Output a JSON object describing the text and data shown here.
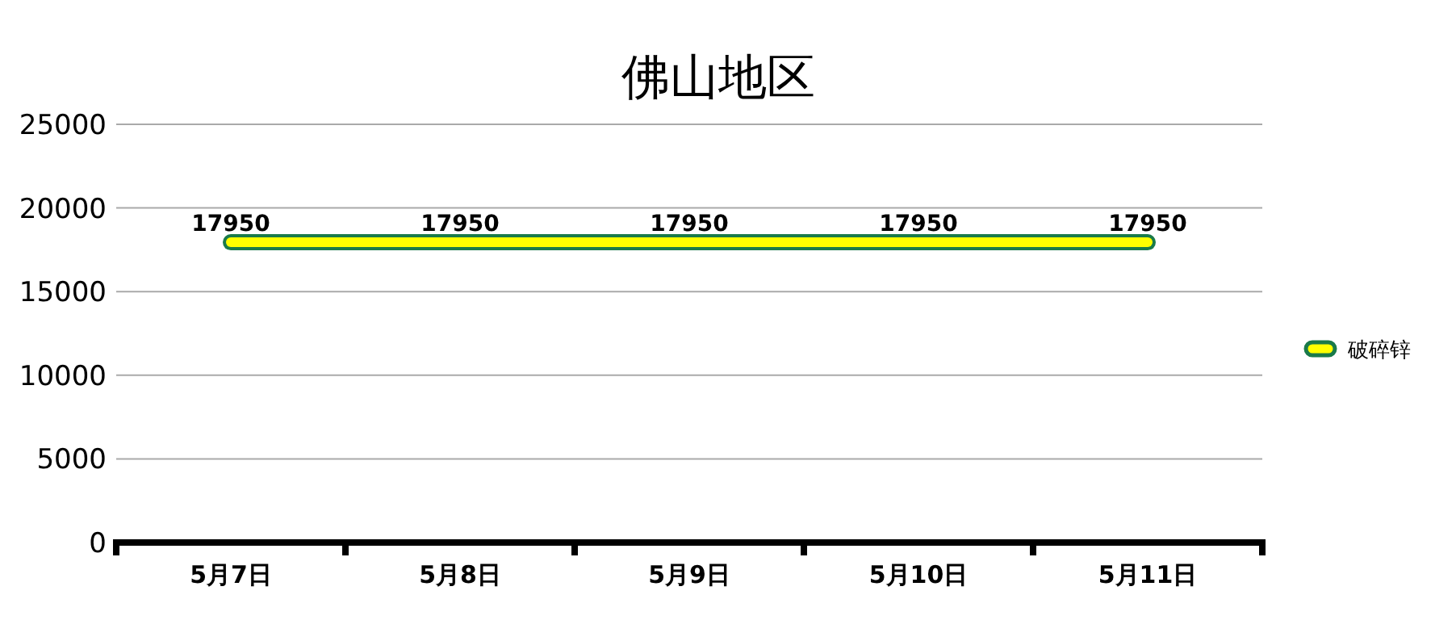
{
  "chart_data": {
    "type": "line",
    "title": "佛山地区",
    "categories": [
      "5月7日",
      "5月8日",
      "5月9日",
      "5月10日",
      "5月11日"
    ],
    "series": [
      {
        "name": "破碎锌",
        "color": "#ffff00",
        "values": [
          17950,
          17950,
          17950,
          17950,
          17950
        ]
      }
    ],
    "ylim": [
      0,
      25000
    ],
    "yticks": [
      0,
      5000,
      10000,
      15000,
      20000,
      25000
    ],
    "grid": "y",
    "legend": "right",
    "data_labels": true,
    "marker": "none",
    "line_style": "solid"
  }
}
